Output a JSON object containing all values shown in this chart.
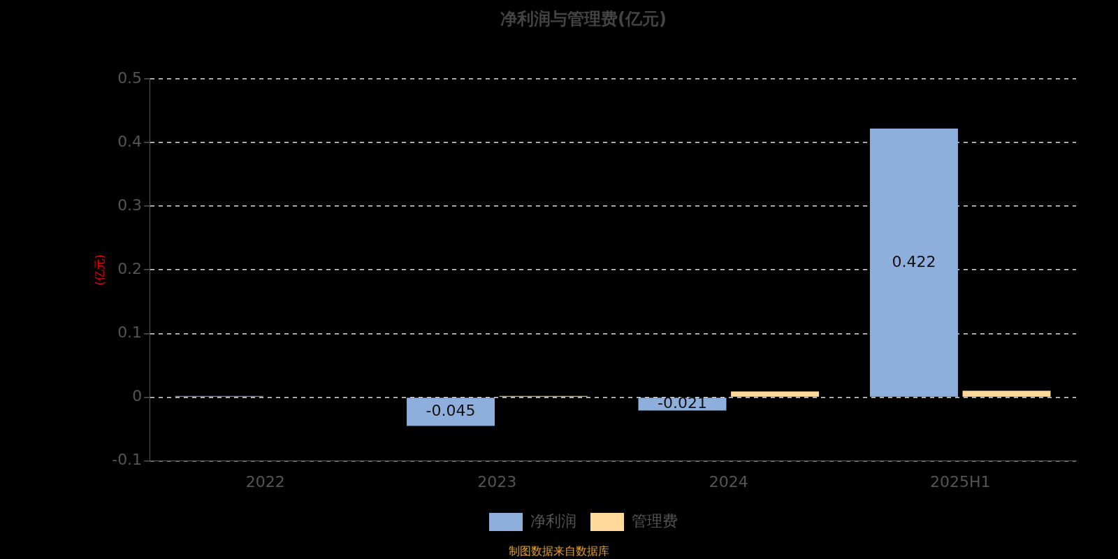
{
  "chart_data": {
    "type": "bar",
    "title": "净利润与管理费(亿元)",
    "ylabel": "(亿元)",
    "categories": [
      "2022",
      "2023",
      "2024",
      "2025H1"
    ],
    "series": [
      {
        "name": "净利润",
        "color": "#8eaedc",
        "values": [
          0.002,
          -0.045,
          -0.021,
          0.422
        ],
        "value_labels": [
          null,
          "-0.045",
          "-0.021",
          "0.422"
        ]
      },
      {
        "name": "管理费",
        "color": "#ffd99a",
        "values": [
          null,
          0.002,
          0.009,
          0.01
        ]
      }
    ],
    "ylim": [
      -0.1,
      0.5
    ],
    "yticks": [
      -0.1,
      0,
      0.1,
      0.2,
      0.3,
      0.4,
      0.5
    ],
    "grid": "y",
    "legend": "bottom",
    "annotations": [
      "制图数据来自数据库"
    ]
  }
}
